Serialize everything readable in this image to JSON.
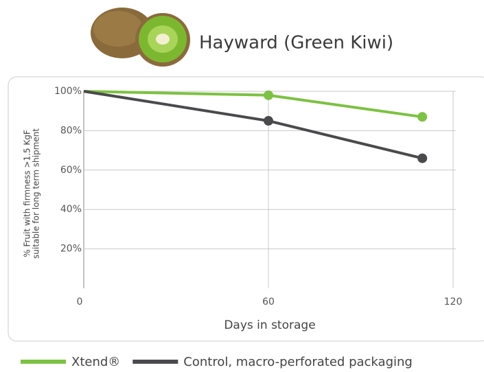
{
  "chart_data": {
    "type": "line",
    "title": "Hayward (Green Kiwi)",
    "ylabel": [
      "% Fruit with firmness >1.5 KgF",
      "suitable for long term shipment"
    ],
    "xlabel": "Days in storage",
    "x": [
      0,
      60,
      110
    ],
    "series": [
      {
        "name": "Xtend®",
        "color": "#7dc242",
        "values": [
          100,
          98,
          87
        ]
      },
      {
        "name": "Control, macro-perforated packaging",
        "color": "#4a4a4d",
        "values": [
          100,
          85,
          66
        ]
      }
    ],
    "xlim": [
      0,
      120
    ],
    "xticks": [
      0,
      60,
      120
    ],
    "ylim": [
      0,
      100
    ],
    "yticks": [
      {
        "value": 20,
        "label": "20%"
      },
      {
        "value": 40,
        "label": "40%"
      },
      {
        "value": 60,
        "label": "60%"
      },
      {
        "value": 80,
        "label": "80%"
      },
      {
        "value": 100,
        "label": "100%"
      }
    ],
    "grid": true
  }
}
